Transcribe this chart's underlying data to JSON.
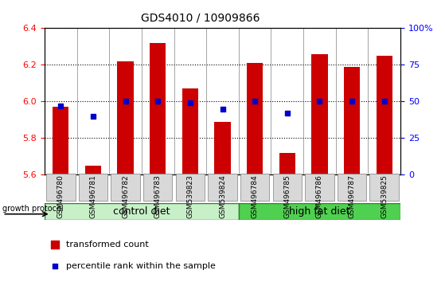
{
  "title": "GDS4010 / 10909866",
  "samples": [
    "GSM496780",
    "GSM496781",
    "GSM496782",
    "GSM496783",
    "GSM539823",
    "GSM539824",
    "GSM496784",
    "GSM496785",
    "GSM496786",
    "GSM496787",
    "GSM539825"
  ],
  "transformed_count": [
    5.97,
    5.65,
    6.22,
    6.32,
    6.07,
    5.89,
    6.21,
    5.72,
    6.26,
    6.19,
    6.25
  ],
  "percentile_rank": [
    47,
    40,
    50,
    50,
    49,
    45,
    50,
    42,
    50,
    50,
    50
  ],
  "ylim_left": [
    5.6,
    6.4
  ],
  "ylim_right": [
    0,
    100
  ],
  "yticks_left": [
    5.6,
    5.8,
    6.0,
    6.2,
    6.4
  ],
  "yticks_right": [
    0,
    25,
    50,
    75,
    100
  ],
  "bar_color": "#cc0000",
  "dot_color": "#0000cc",
  "bar_bottom": 5.6,
  "control_diet_indices": [
    0,
    1,
    2,
    3,
    4,
    5
  ],
  "high_fat_indices": [
    6,
    7,
    8,
    9,
    10
  ],
  "control_diet_label": "control diet",
  "high_fat_label": "high fat diet",
  "growth_protocol_label": "growth protocol",
  "legend_bar_label": "transformed count",
  "legend_dot_label": "percentile rank within the sample",
  "control_diet_color": "#c8f0c8",
  "high_fat_color": "#50d050",
  "tick_bg_color": "#d8d8d8",
  "grid_color": "#000000"
}
